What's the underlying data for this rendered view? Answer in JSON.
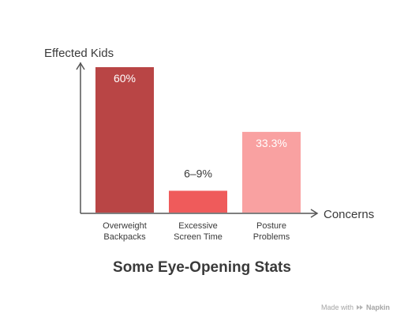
{
  "chart_data": {
    "type": "bar",
    "title": "Some Eye-Opening Stats",
    "ylabel": "Effected Kids",
    "xlabel": "Concerns",
    "categories": [
      "Overweight\nBackpacks",
      "Excessive\nScreen Time",
      "Posture\nProblems"
    ],
    "values": [
      60,
      9,
      33.3
    ],
    "data_labels": [
      "60%",
      "6–9%",
      "33.3%"
    ],
    "bar_colors": [
      "#b94545",
      "#ef5b5b",
      "#f9a1a1"
    ],
    "ylim": [
      0,
      60
    ]
  },
  "footer": {
    "prefix": "Made with",
    "brand": "Napkin",
    "icon": "napkin-logo-icon"
  }
}
